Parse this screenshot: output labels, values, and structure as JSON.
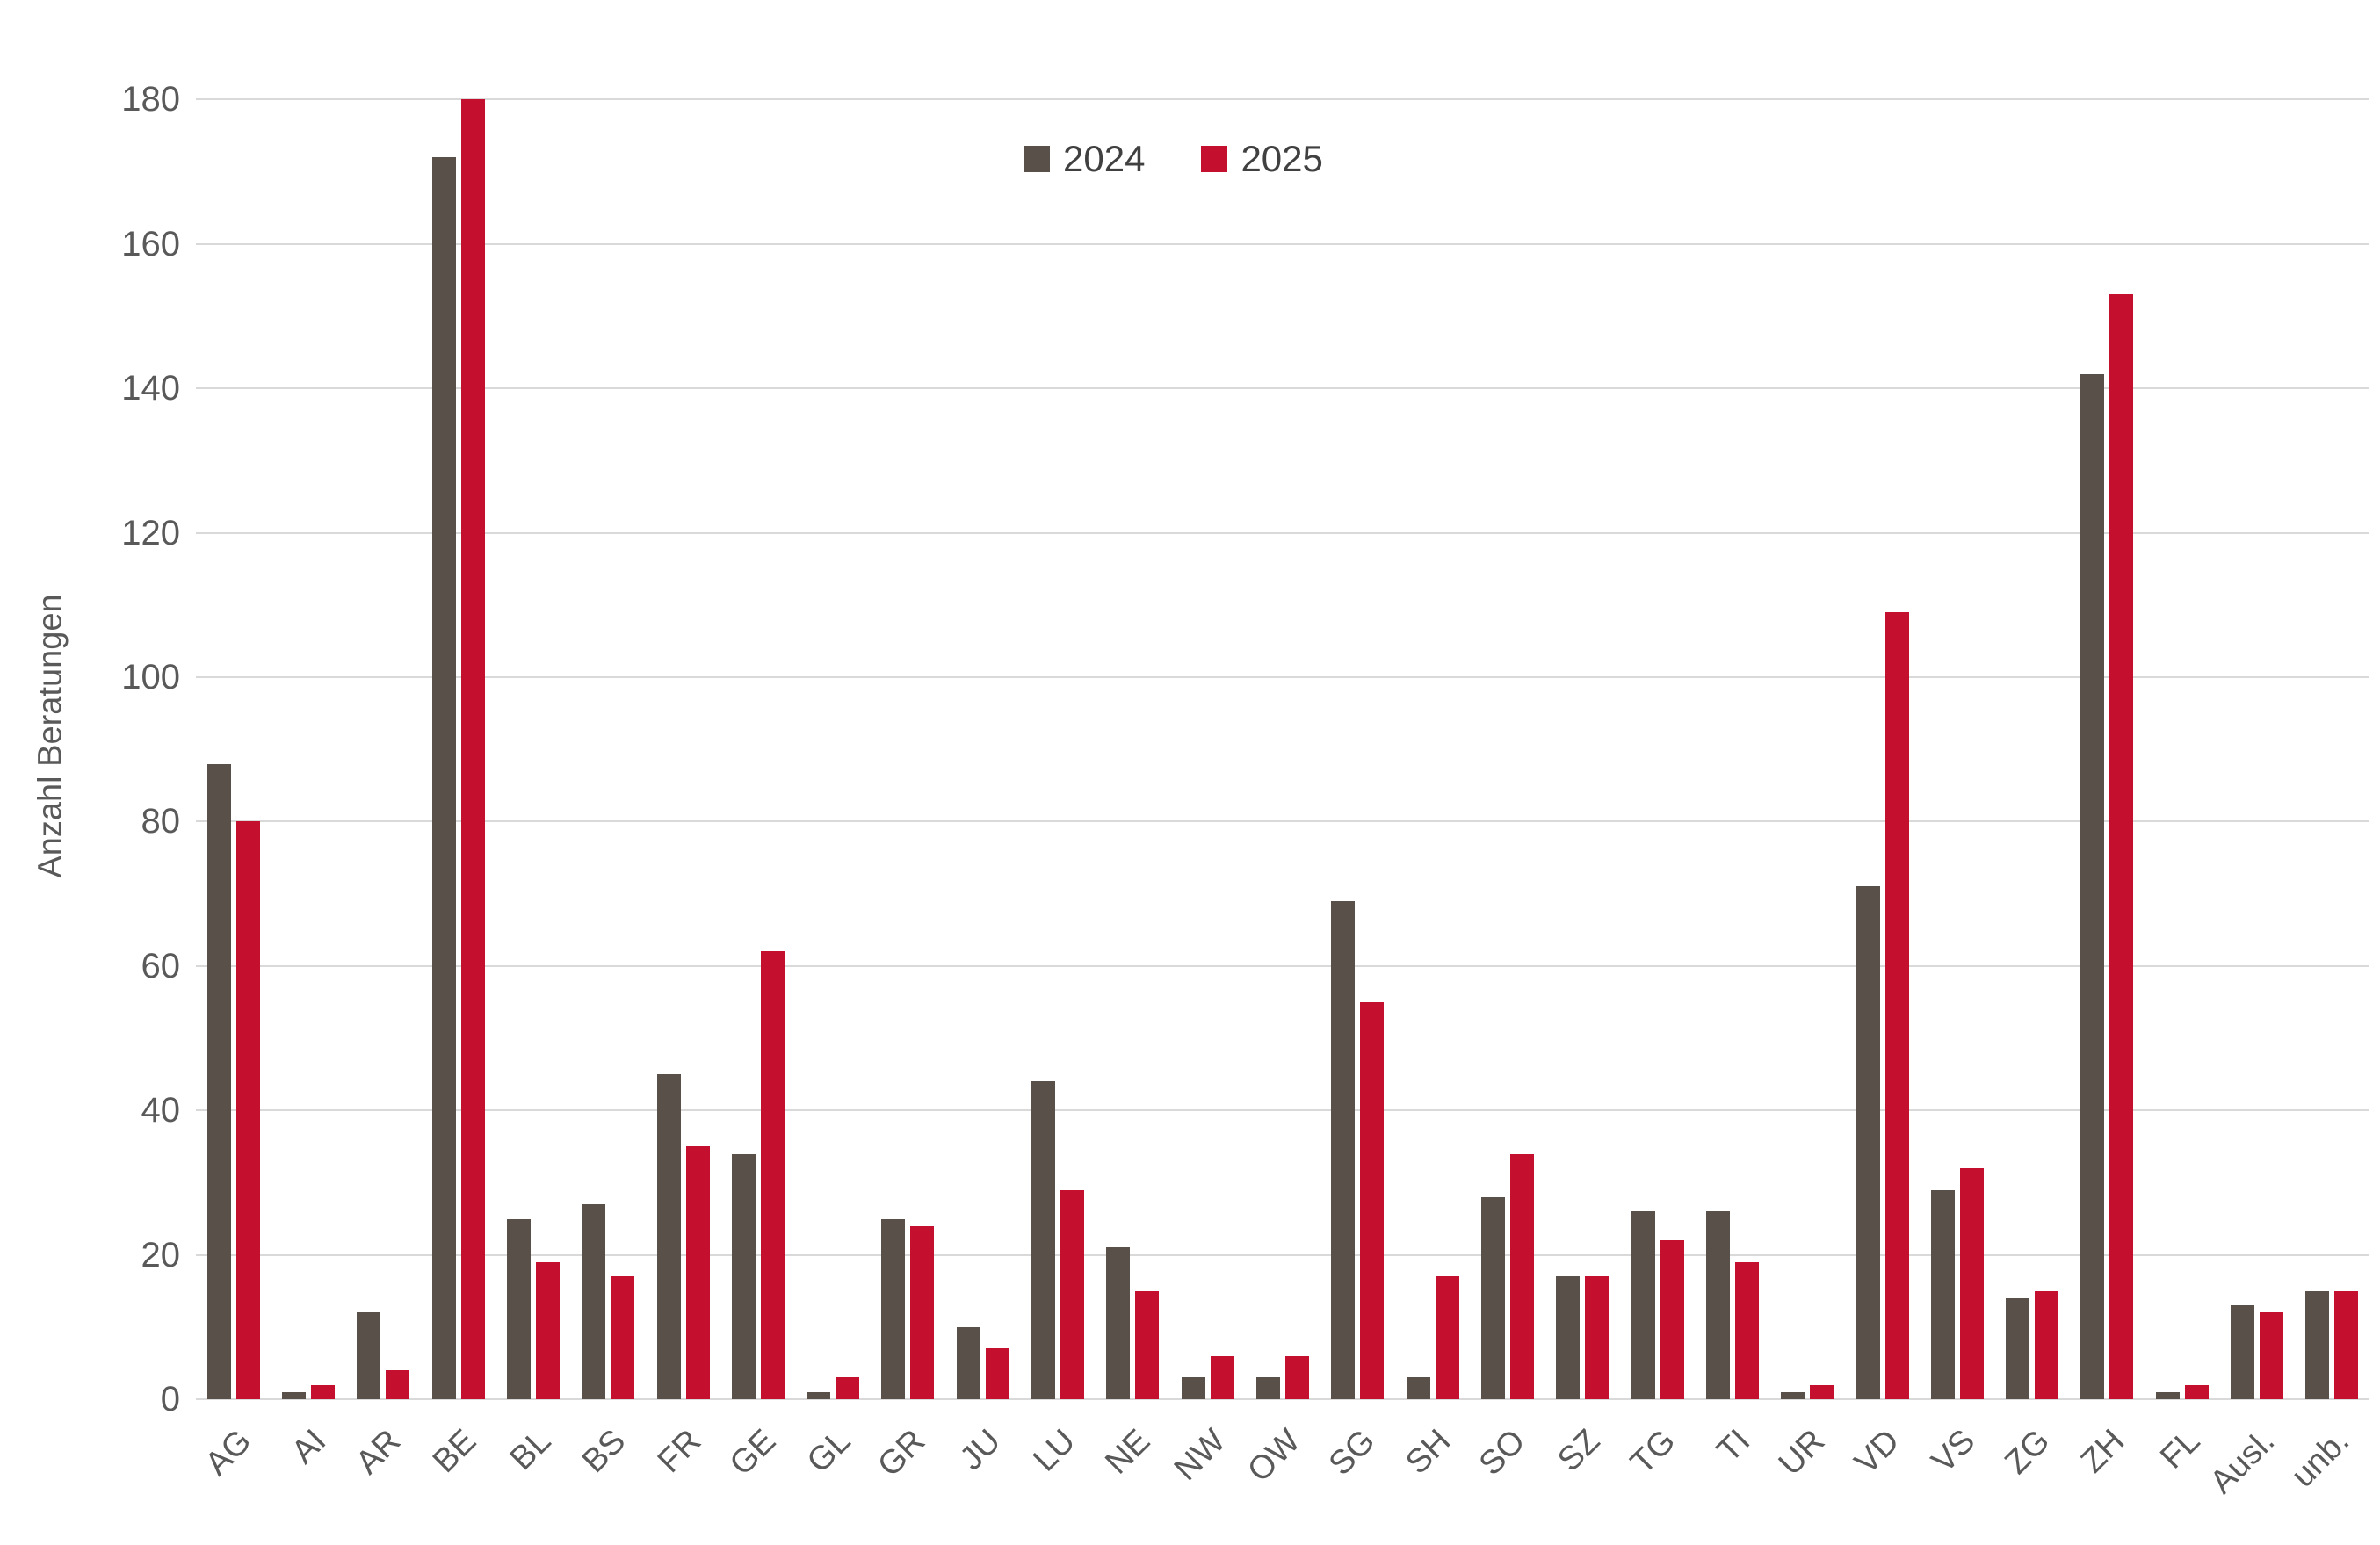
{
  "chart_data": {
    "type": "bar",
    "title": "",
    "xlabel": "",
    "ylabel": "Anzahl Beratungen",
    "categories": [
      "AG",
      "AI",
      "AR",
      "BE",
      "BL",
      "BS",
      "FR",
      "GE",
      "GL",
      "GR",
      "JU",
      "LU",
      "NE",
      "NW",
      "OW",
      "SG",
      "SH",
      "SO",
      "SZ",
      "TG",
      "TI",
      "UR",
      "VD",
      "VS",
      "ZG",
      "ZH",
      "FL",
      "Ausl.",
      "unb."
    ],
    "series": [
      {
        "name": "2024",
        "color": "#595049",
        "values": [
          88,
          1,
          12,
          172,
          25,
          27,
          45,
          34,
          1,
          25,
          10,
          44,
          21,
          3,
          3,
          69,
          3,
          28,
          17,
          26,
          26,
          1,
          71,
          29,
          14,
          142,
          1,
          13,
          15
        ]
      },
      {
        "name": "2025",
        "color": "#c50f2e",
        "values": [
          80,
          2,
          4,
          180,
          19,
          17,
          35,
          62,
          3,
          24,
          7,
          29,
          15,
          6,
          6,
          55,
          17,
          34,
          17,
          22,
          19,
          2,
          109,
          32,
          15,
          153,
          2,
          12,
          15
        ]
      }
    ],
    "ylim": [
      0,
      186
    ],
    "yticks": [
      0,
      20,
      40,
      60,
      80,
      100,
      120,
      140,
      160,
      180
    ],
    "grid": "horizontal",
    "gridline_color": "#d9d9d9",
    "text_color": "#595959",
    "legend_position": "top-center"
  }
}
